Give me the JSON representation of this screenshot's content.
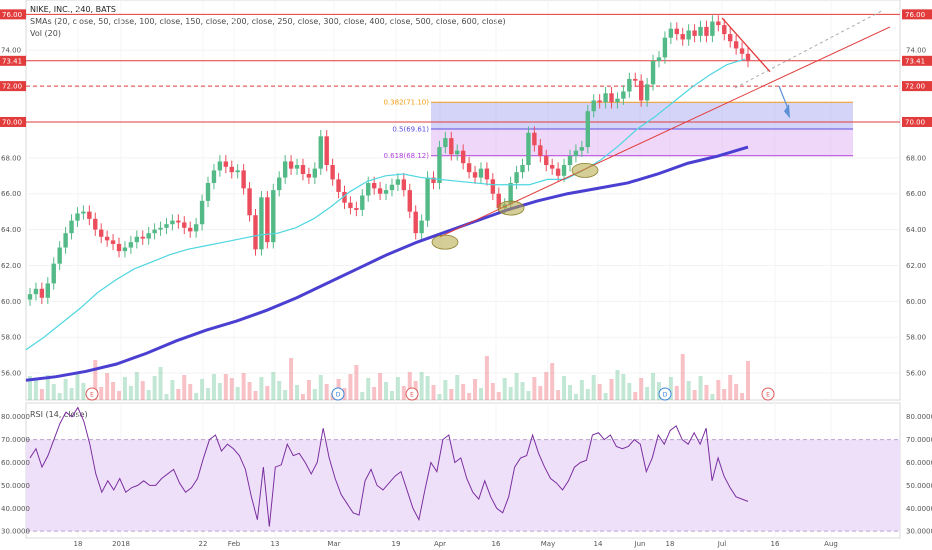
{
  "header": {
    "title": "NIKE, INC., 240, BATS",
    "sma": "SMAs (20, close, 50, close, 100, close, 150, close, 200, close, 250, close, 300, close, 400, close, 500, close, 600, close)",
    "volume": "Vol (20)",
    "rsi": "RSI (14, close)"
  },
  "colors": {
    "bull": "#53b987",
    "bear": "#eb4d5c",
    "sma20": "#4fd6e0",
    "sma200": "#4a3fd1",
    "red_line": "#e23b3b",
    "fib_fill": "#9f9ff0",
    "fib_fill_2": "#d69cf0",
    "rsi_line": "#7b2fa0",
    "rsi_band": "#efe0fa"
  },
  "chart_data": [
    {
      "type": "candlestick",
      "name": "price",
      "y_axis_ticks": [
        "56.00",
        "58.00",
        "60.00",
        "62.00",
        "64.00",
        "66.00",
        "68.00",
        "70.00",
        "72.00",
        "74.00",
        "76.00"
      ],
      "x_axis_ticks": [
        "18",
        "2018",
        "22",
        "Feb",
        "13",
        "Mar",
        "19",
        "Apr",
        "16",
        "May",
        "14",
        "Jun",
        "18",
        "Jul",
        "16",
        "Aug"
      ],
      "ylim": [
        54.5,
        76.8
      ],
      "last_price": "73.41",
      "horizontal_levels": [
        {
          "value": "76.00",
          "style": "solid"
        },
        {
          "value": "73.41",
          "style": "solid"
        },
        {
          "value": "72.00",
          "style": "dashed"
        },
        {
          "value": "70.00",
          "style": "solid"
        }
      ],
      "fibonacci": [
        {
          "label": "0.382(71.10)",
          "value": 71.1
        },
        {
          "label": "0.5(69.61)",
          "value": 69.61
        },
        {
          "label": "0.618(68.12)",
          "value": 68.12
        }
      ],
      "closes": [
        60.4,
        60.7,
        60.2,
        61.0,
        62.1,
        63.0,
        63.8,
        64.5,
        64.9,
        65.0,
        64.6,
        64.0,
        63.6,
        63.4,
        63.2,
        62.8,
        63.0,
        63.3,
        63.6,
        63.5,
        63.8,
        64.0,
        64.1,
        64.3,
        64.5,
        64.4,
        64.1,
        63.9,
        64.3,
        65.6,
        66.6,
        67.3,
        67.8,
        67.5,
        67.2,
        67.3,
        66.3,
        64.8,
        62.9,
        65.8,
        63.3,
        66.2,
        66.9,
        67.8,
        67.4,
        67.6,
        67.1,
        66.9,
        67.4,
        69.2,
        67.6,
        66.8,
        66.1,
        65.5,
        65.2,
        65.1,
        65.9,
        66.6,
        66.3,
        66.0,
        66.2,
        66.5,
        66.8,
        66.2,
        65.0,
        63.8,
        64.5,
        66.9,
        66.6,
        68.6,
        69.1,
        68.2,
        68.4,
        67.7,
        67.2,
        66.9,
        67.4,
        66.8,
        66.0,
        65.2,
        65.4,
        66.6,
        67.2,
        67.6,
        69.4,
        68.7,
        68.1,
        67.6,
        67.4,
        67.0,
        67.6,
        68.1,
        68.4,
        68.6,
        70.6,
        71.2,
        71.1,
        71.6,
        71.1,
        71.3,
        71.7,
        72.4,
        72.3,
        71.2,
        72.1,
        73.4,
        73.6,
        74.7,
        75.2,
        74.9,
        74.6,
        75.1,
        74.8,
        75.3,
        74.8,
        75.6,
        75.4,
        74.9,
        74.5,
        74.1,
        73.8,
        73.4
      ],
      "sma20": [
        57.3,
        58.0,
        58.8,
        59.6,
        60.5,
        61.2,
        61.8,
        62.2,
        62.6,
        62.9,
        63.1,
        63.3,
        63.5,
        63.7,
        63.8,
        64.1,
        64.6,
        65.3,
        66.1,
        66.7,
        67.0,
        67.1,
        66.9,
        66.8,
        66.7,
        66.6,
        66.5,
        66.5,
        66.5,
        66.8,
        66.8,
        67.3,
        67.9,
        68.7,
        69.6,
        70.3,
        71.1,
        71.9,
        72.6,
        73.2,
        73.5
      ],
      "sma200": [
        55.6,
        55.8,
        56.1,
        56.5,
        57.1,
        57.8,
        58.4,
        58.9,
        59.5,
        60.2,
        61.0,
        61.8,
        62.6,
        63.3,
        63.9,
        64.5,
        65.1,
        65.6,
        66.0,
        66.3,
        66.6,
        67.1,
        67.7,
        68.1,
        68.6
      ],
      "earnings_markers": [
        "E",
        "D",
        "E",
        "D",
        "E"
      ]
    },
    {
      "type": "line",
      "name": "RSI (14, close)",
      "y_axis_ticks": [
        "30.0000",
        "40.0000",
        "50.0000",
        "60.0000",
        "70.0000",
        "80.0000"
      ],
      "ylim": [
        27,
        86
      ],
      "band": [
        30,
        70
      ],
      "values": [
        62,
        66,
        58,
        63,
        70,
        77,
        82,
        80,
        84,
        78,
        68,
        55,
        47,
        52,
        48,
        53,
        47,
        49,
        50,
        52,
        50,
        50,
        53,
        55,
        57,
        51,
        47,
        49,
        53,
        62,
        70,
        72,
        65,
        68,
        66,
        63,
        57,
        45,
        35,
        58,
        32,
        58,
        59,
        68,
        63,
        64,
        60,
        55,
        60,
        75,
        62,
        53,
        46,
        42,
        38,
        37,
        52,
        57,
        50,
        48,
        51,
        54,
        56,
        48,
        40,
        35,
        48,
        60,
        56,
        70,
        72,
        60,
        62,
        53,
        47,
        44,
        52,
        45,
        40,
        38,
        45,
        58,
        62,
        63,
        72,
        64,
        58,
        53,
        51,
        48,
        52,
        58,
        60,
        61,
        72,
        73,
        70,
        72,
        67,
        66,
        67,
        70,
        68,
        56,
        62,
        72,
        68,
        74,
        76,
        70,
        68,
        73,
        68,
        75,
        52,
        62,
        54,
        49,
        45,
        44,
        43
      ]
    }
  ]
}
